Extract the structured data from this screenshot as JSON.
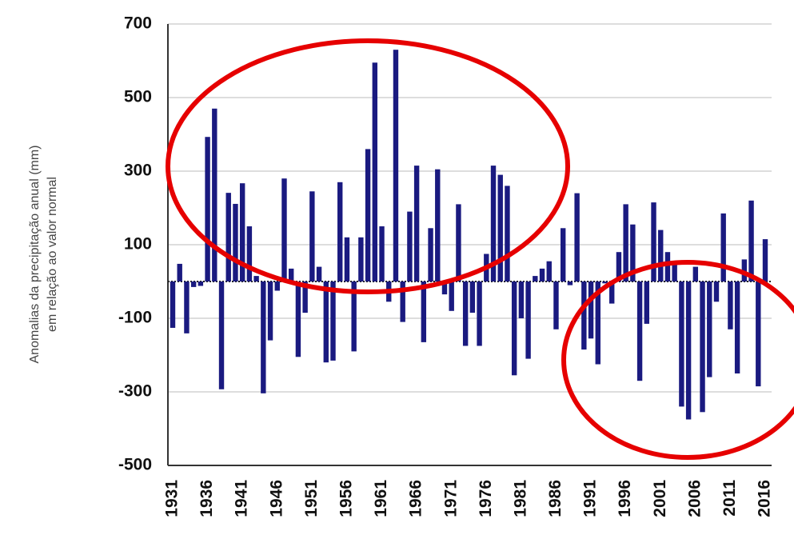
{
  "chart_data": {
    "type": "bar",
    "y_label_lines": [
      "Anomalias da precipitação anual (mm)",
      "em relação ao valor normal"
    ],
    "categories": [
      "1931",
      null,
      null,
      null,
      null,
      "1936",
      null,
      null,
      null,
      null,
      "1941",
      null,
      null,
      null,
      null,
      "1946",
      null,
      null,
      null,
      null,
      "1951",
      null,
      null,
      null,
      null,
      "1956",
      null,
      null,
      null,
      null,
      "1961",
      null,
      null,
      null,
      null,
      "1966",
      null,
      null,
      null,
      null,
      "1971",
      null,
      null,
      null,
      null,
      "1976",
      null,
      null,
      null,
      null,
      "1981",
      null,
      null,
      null,
      null,
      "1986",
      null,
      null,
      null,
      null,
      "1991",
      null,
      null,
      null,
      null,
      "1996",
      null,
      null,
      null,
      null,
      "2001",
      null,
      null,
      null,
      null,
      "2006",
      null,
      null,
      null,
      null,
      "2011",
      null,
      null,
      null,
      null,
      "2016"
    ],
    "values": [
      -126,
      48,
      -141,
      -15,
      -12,
      393,
      470,
      -293,
      241,
      211,
      267,
      150,
      15,
      -304,
      -160,
      -25,
      280,
      35,
      -205,
      -85,
      245,
      40,
      -220,
      -215,
      270,
      120,
      -190,
      120,
      360,
      595,
      150,
      -55,
      630,
      -110,
      190,
      315,
      -165,
      145,
      305,
      -35,
      -80,
      210,
      -175,
      -85,
      -175,
      75,
      315,
      290,
      260,
      -255,
      -100,
      -210,
      15,
      35,
      55,
      -130,
      145,
      -10,
      240,
      -185,
      -155,
      -225,
      -5,
      -60,
      80,
      210,
      155,
      -270,
      -115,
      215,
      140,
      80,
      55,
      -340,
      -375,
      40,
      -355,
      -260,
      -55,
      185,
      -130,
      -250,
      60,
      220,
      -285,
      115
    ],
    "color": "#1a1a80",
    "ylim": [
      -500,
      700
    ],
    "yticks": [
      -500,
      -300,
      -100,
      100,
      300,
      500,
      700
    ],
    "grid": true
  }
}
